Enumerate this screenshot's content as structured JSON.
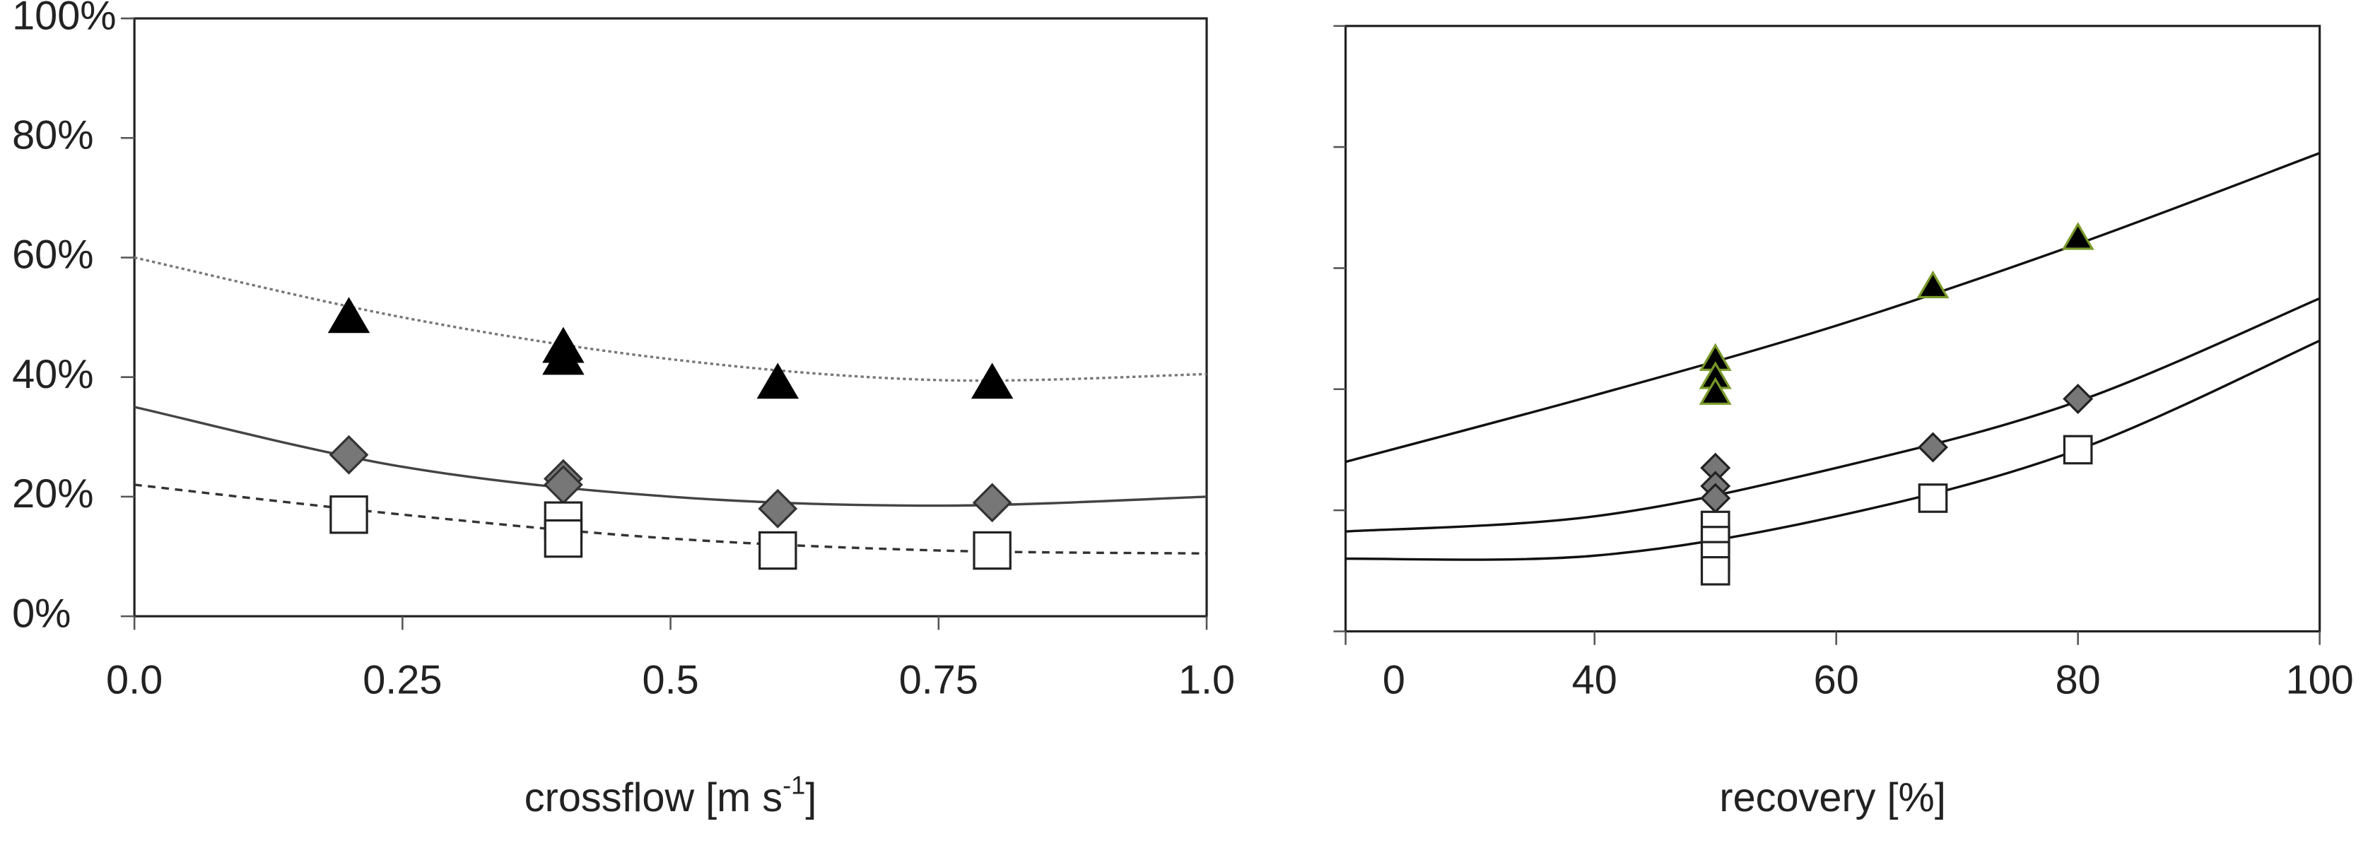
{
  "chart_data": [
    {
      "type": "scatter",
      "x_label": "crossflow [m s",
      "x_label_sup": "-1",
      "x_label_end": "]",
      "xlim": [
        0,
        1
      ],
      "ylim": [
        0,
        100
      ],
      "xticks": [
        {
          "value": 0,
          "label": "0.0"
        },
        0.25,
        0.5,
        0.75,
        {
          "value": 1,
          "label": "1.0"
        }
      ],
      "yticks": [
        {
          "value": 0,
          "label": "0%"
        },
        {
          "value": 20,
          "label": "20%"
        },
        {
          "value": 40,
          "label": "40%"
        },
        {
          "value": 60,
          "label": "60%"
        },
        {
          "value": 80,
          "label": "80%"
        },
        {
          "value": 100,
          "label": "100%"
        }
      ],
      "show_ytick_labels": true,
      "series": [
        {
          "line": "dotted",
          "color": "#777777",
          "x": [
            0,
            0.25,
            0.5,
            0.75,
            1
          ],
          "values": [
            60,
            50,
            43,
            39.5,
            40.5
          ]
        },
        {
          "line": "solid",
          "color": "#444444",
          "x": [
            0,
            0.25,
            0.5,
            0.75,
            1
          ],
          "values": [
            35,
            25,
            20,
            18.5,
            20
          ]
        },
        {
          "line": "dashed",
          "color": "#333333",
          "x": [
            0,
            0.25,
            0.5,
            0.75,
            1
          ],
          "values": [
            22,
            17,
            13,
            11,
            10.5
          ]
        },
        {
          "marker": "triangle",
          "color": "#000000",
          "edge": "#000000",
          "x": [
            0.2,
            0.4,
            0.4,
            0.6,
            0.8
          ],
          "values": [
            50,
            45,
            43,
            39,
            39
          ]
        },
        {
          "marker": "diamond",
          "color": "#777777",
          "edge": "#333333",
          "x": [
            0.2,
            0.4,
            0.4,
            0.6,
            0.8
          ],
          "values": [
            27,
            23,
            22,
            18,
            19
          ]
        },
        {
          "marker": "square",
          "color": "#ffffff",
          "edge": "#222222",
          "x": [
            0.2,
            0.4,
            0.4,
            0.6,
            0.8
          ],
          "values": [
            17,
            16,
            13,
            11,
            11
          ]
        }
      ]
    },
    {
      "type": "scatter",
      "x_label": "recovery [%]",
      "x_origin_label": "0",
      "xlim": [
        19.4,
        100
      ],
      "ylim": [
        0,
        100
      ],
      "xticks": [
        40,
        60,
        80,
        100
      ],
      "yticks": [
        0,
        20,
        40,
        60,
        80,
        100
      ],
      "show_ytick_labels": false,
      "series": [
        {
          "line": "solid",
          "color": "#111111",
          "x": [
            19.4,
            40,
            60,
            80,
            100
          ],
          "values": [
            28,
            39,
            50.5,
            64,
            79
          ]
        },
        {
          "line": "solid",
          "color": "#111111",
          "x": [
            19.4,
            40,
            60,
            80,
            100
          ],
          "values": [
            16.5,
            19,
            27,
            38,
            55
          ]
        },
        {
          "line": "solid",
          "color": "#111111",
          "x": [
            19.4,
            40,
            60,
            80,
            100
          ],
          "values": [
            12,
            12.5,
            19,
            30,
            48
          ]
        },
        {
          "marker": "triangle",
          "color": "#000000",
          "edge": "#7a9a2a",
          "x": [
            50,
            50,
            50,
            68,
            80
          ],
          "values": [
            45,
            42,
            39.4,
            57,
            65
          ]
        },
        {
          "marker": "diamond",
          "color": "#777777",
          "edge": "#222222",
          "x": [
            50,
            50,
            50,
            68,
            80
          ],
          "values": [
            27,
            24,
            22,
            30.4,
            38.4
          ]
        },
        {
          "marker": "square",
          "color": "#ffffff",
          "edge": "#222222",
          "x": [
            50,
            50,
            50,
            50,
            68,
            80
          ],
          "values": [
            17.5,
            15,
            12.5,
            10,
            22,
            30
          ]
        }
      ]
    }
  ]
}
